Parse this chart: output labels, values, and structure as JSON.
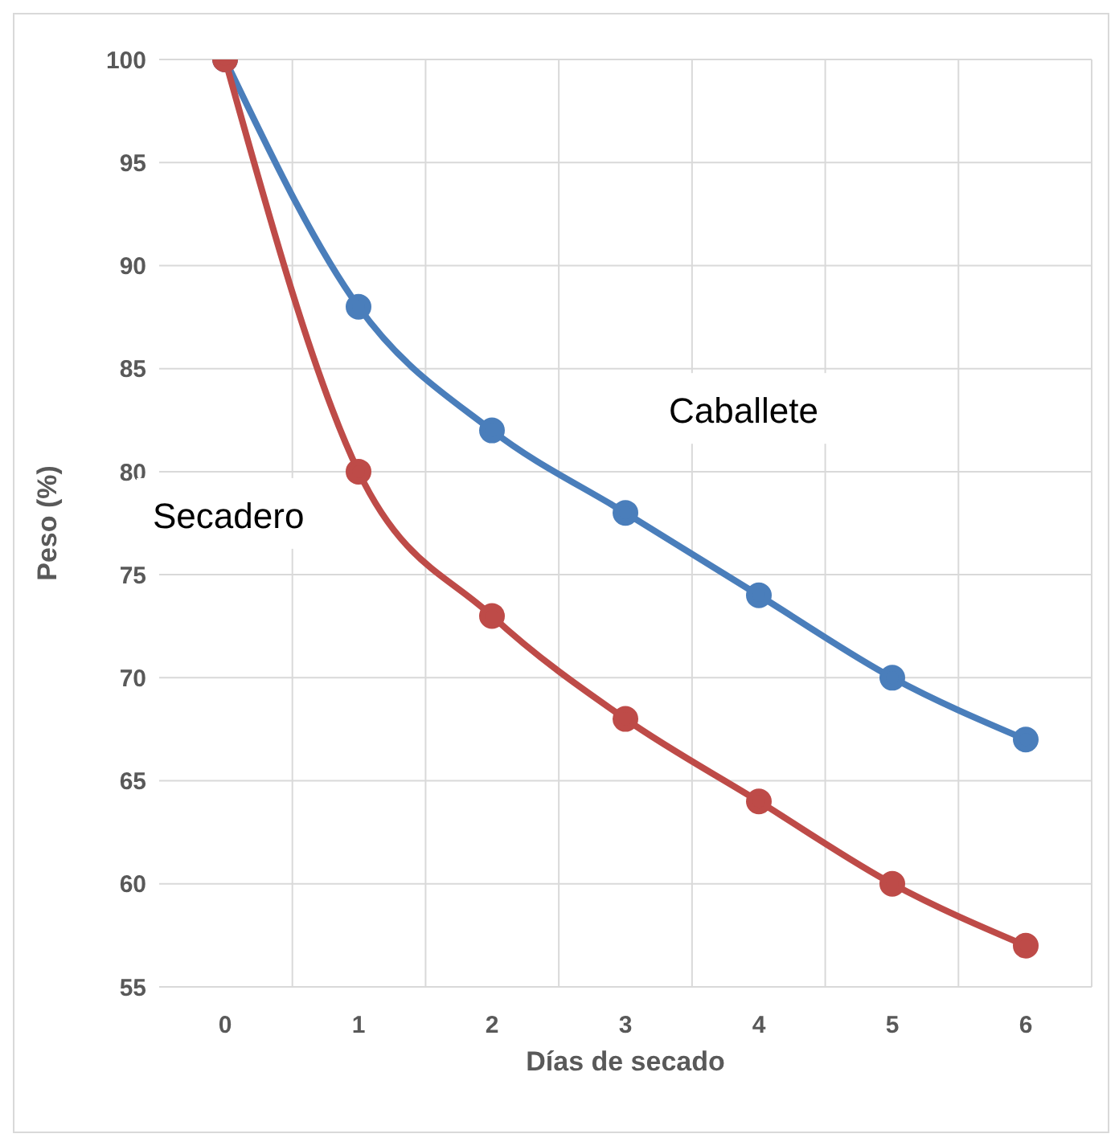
{
  "chart_data": {
    "type": "line",
    "xlabel": "Días de secado",
    "ylabel": "Peso (%)",
    "categories": [
      "0",
      "1",
      "2",
      "3",
      "4",
      "5",
      "6"
    ],
    "series": [
      {
        "name": "Caballete",
        "color": "#4a7ebb",
        "values": [
          100,
          88,
          82,
          78,
          74,
          70,
          67
        ]
      },
      {
        "name": "Secadero",
        "color": "#be4b48",
        "values": [
          100,
          80,
          73,
          68,
          64,
          60,
          57
        ]
      }
    ],
    "ylim": [
      55,
      100
    ],
    "yticks": [
      55,
      60,
      65,
      70,
      75,
      80,
      85,
      90,
      95,
      100
    ],
    "grid": true,
    "marker": "circle",
    "line_style": "solid"
  }
}
